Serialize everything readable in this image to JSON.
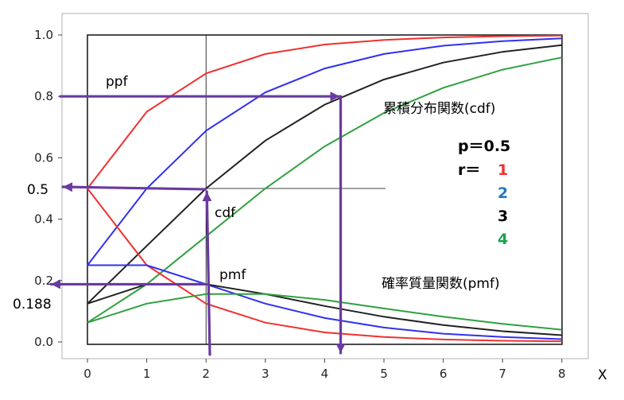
{
  "chart_data": {
    "type": "line",
    "x": [
      0,
      1,
      2,
      3,
      4,
      5,
      6,
      7,
      8
    ],
    "xlabel": "X",
    "xticks": [
      "0",
      "1",
      "2",
      "3",
      "4",
      "5",
      "6",
      "7",
      "8"
    ],
    "yticks": [
      "0.0",
      "0.2",
      "0.4",
      "0.6",
      "0.8",
      "1.0"
    ],
    "ylim": [
      0,
      1.0
    ],
    "grid": false,
    "params": {
      "p_label": "p＝0.5",
      "r_label": "r＝",
      "r_values": [
        "1",
        "2",
        "3",
        "4"
      ]
    },
    "colors": {
      "r1": "#f03030",
      "r2": "#3030f0",
      "r3": "#222222",
      "r4": "#30a040",
      "r2_text": "#1e78c8",
      "r4_text": "#20a050",
      "arrow": "#6a3aa0"
    },
    "series": [
      {
        "kind": "cdf",
        "r": 1,
        "values": [
          0.5,
          0.75,
          0.875,
          0.938,
          0.969,
          0.984,
          0.992,
          0.996,
          0.998
        ]
      },
      {
        "kind": "cdf",
        "r": 2,
        "values": [
          0.25,
          0.5,
          0.688,
          0.813,
          0.891,
          0.938,
          0.965,
          0.98,
          0.989
        ]
      },
      {
        "kind": "cdf",
        "r": 3,
        "values": [
          0.125,
          0.313,
          0.5,
          0.656,
          0.773,
          0.855,
          0.91,
          0.945,
          0.967
        ]
      },
      {
        "kind": "cdf",
        "r": 4,
        "values": [
          0.063,
          0.188,
          0.344,
          0.5,
          0.637,
          0.746,
          0.828,
          0.887,
          0.927
        ]
      },
      {
        "kind": "pmf",
        "r": 1,
        "values": [
          0.5,
          0.25,
          0.125,
          0.063,
          0.031,
          0.016,
          0.008,
          0.004,
          0.002
        ]
      },
      {
        "kind": "pmf",
        "r": 2,
        "values": [
          0.25,
          0.25,
          0.188,
          0.125,
          0.078,
          0.047,
          0.027,
          0.016,
          0.009
        ]
      },
      {
        "kind": "pmf",
        "r": 3,
        "values": [
          0.125,
          0.188,
          0.188,
          0.156,
          0.117,
          0.082,
          0.055,
          0.035,
          0.022
        ]
      },
      {
        "kind": "pmf",
        "r": 4,
        "values": [
          0.063,
          0.125,
          0.156,
          0.156,
          0.137,
          0.109,
          0.082,
          0.059,
          0.04
        ]
      }
    ],
    "annotations": {
      "cdf_title": "累積分布関数(cdf)",
      "pmf_title": "確率質量関数(pmf)",
      "ppf": "ppf",
      "cdf": "cdf",
      "pmf": "pmf",
      "value_05": "0.5",
      "value_0188": "0.188"
    }
  }
}
